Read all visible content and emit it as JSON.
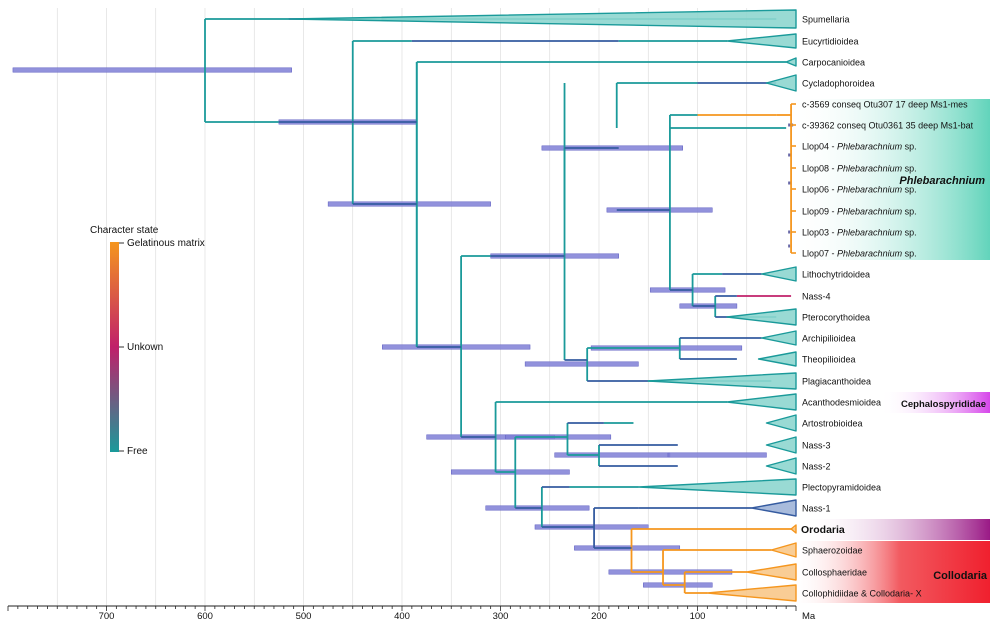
{
  "colors": {
    "free": "#1a9a9a",
    "gel": "#f5961e",
    "unk": "#c0206a",
    "mid": "#355ba0",
    "hpd": "#7f7fd6",
    "grid": "#d8d8d8",
    "phleb_bg": "#7ad9c4",
    "cepha_bg": "#d44ce6",
    "oro_bg": "#9a1a86",
    "collo_bg": "#f2283a"
  },
  "axis": {
    "unit": "Ma",
    "ticks": [
      700,
      600,
      500,
      400,
      300,
      200,
      100
    ]
  },
  "legend": {
    "title": "Character state",
    "top": "Gelatinous matrix",
    "middle": "Unkown",
    "bottom": "Free"
  },
  "groups": {
    "phlebarachnium": "Phlebarachnium",
    "cephalospyrididae": "Cephalospyrididae",
    "orodaria": "Orodaria",
    "collodaria": "Collodaria"
  },
  "leaves": [
    {
      "label": "Spumellaria",
      "italic": ""
    },
    {
      "label": "Eucyrtidioidea",
      "italic": ""
    },
    {
      "label": "Carpocanioidea",
      "italic": ""
    },
    {
      "label": "Cycladophoroidea",
      "italic": ""
    },
    {
      "label": "c-3569 conseq Otu307 17 deep Ms1-mes",
      "italic": ""
    },
    {
      "label": "c-39362 conseq Otu0361 35 deep Ms1-bat",
      "italic": ""
    },
    {
      "label": "Llop04 - ",
      "italic": "Phlebarachnium",
      "suffix": " sp."
    },
    {
      "label": "Llop08 - ",
      "italic": "Phlebarachnium",
      "suffix": " sp."
    },
    {
      "label": "Llop06 - ",
      "italic": "Phlebarachnium",
      "suffix": " sp."
    },
    {
      "label": "Llop09 - ",
      "italic": "Phlebarachnium",
      "suffix": " sp."
    },
    {
      "label": "Llop03 - ",
      "italic": "Phlebarachnium",
      "suffix": " sp."
    },
    {
      "label": "Llop07 - ",
      "italic": "Phlebarachnium",
      "suffix": " sp."
    },
    {
      "label": "Lithochytridoidea",
      "italic": ""
    },
    {
      "label": "Nass-4",
      "italic": ""
    },
    {
      "label": "Pterocorythoidea",
      "italic": ""
    },
    {
      "label": "Archipilioidea",
      "italic": ""
    },
    {
      "label": "Theopilioidea",
      "italic": ""
    },
    {
      "label": "Plagiacanthoidea",
      "italic": ""
    },
    {
      "label": "Acanthodesmioidea",
      "italic": ""
    },
    {
      "label": "Artostrobioidea",
      "italic": ""
    },
    {
      "label": "Nass-3",
      "italic": ""
    },
    {
      "label": "Nass-2",
      "italic": ""
    },
    {
      "label": "Plectopyramidoidea",
      "italic": ""
    },
    {
      "label": "Nass-1",
      "italic": ""
    },
    {
      "label": "Orodaria",
      "italic": "",
      "bold": true
    },
    {
      "label": "Sphaerozoidae",
      "italic": ""
    },
    {
      "label": "Collosphaeridae",
      "italic": ""
    },
    {
      "label": "Collophidiidae & Collodaria- X",
      "italic": ""
    }
  ]
}
